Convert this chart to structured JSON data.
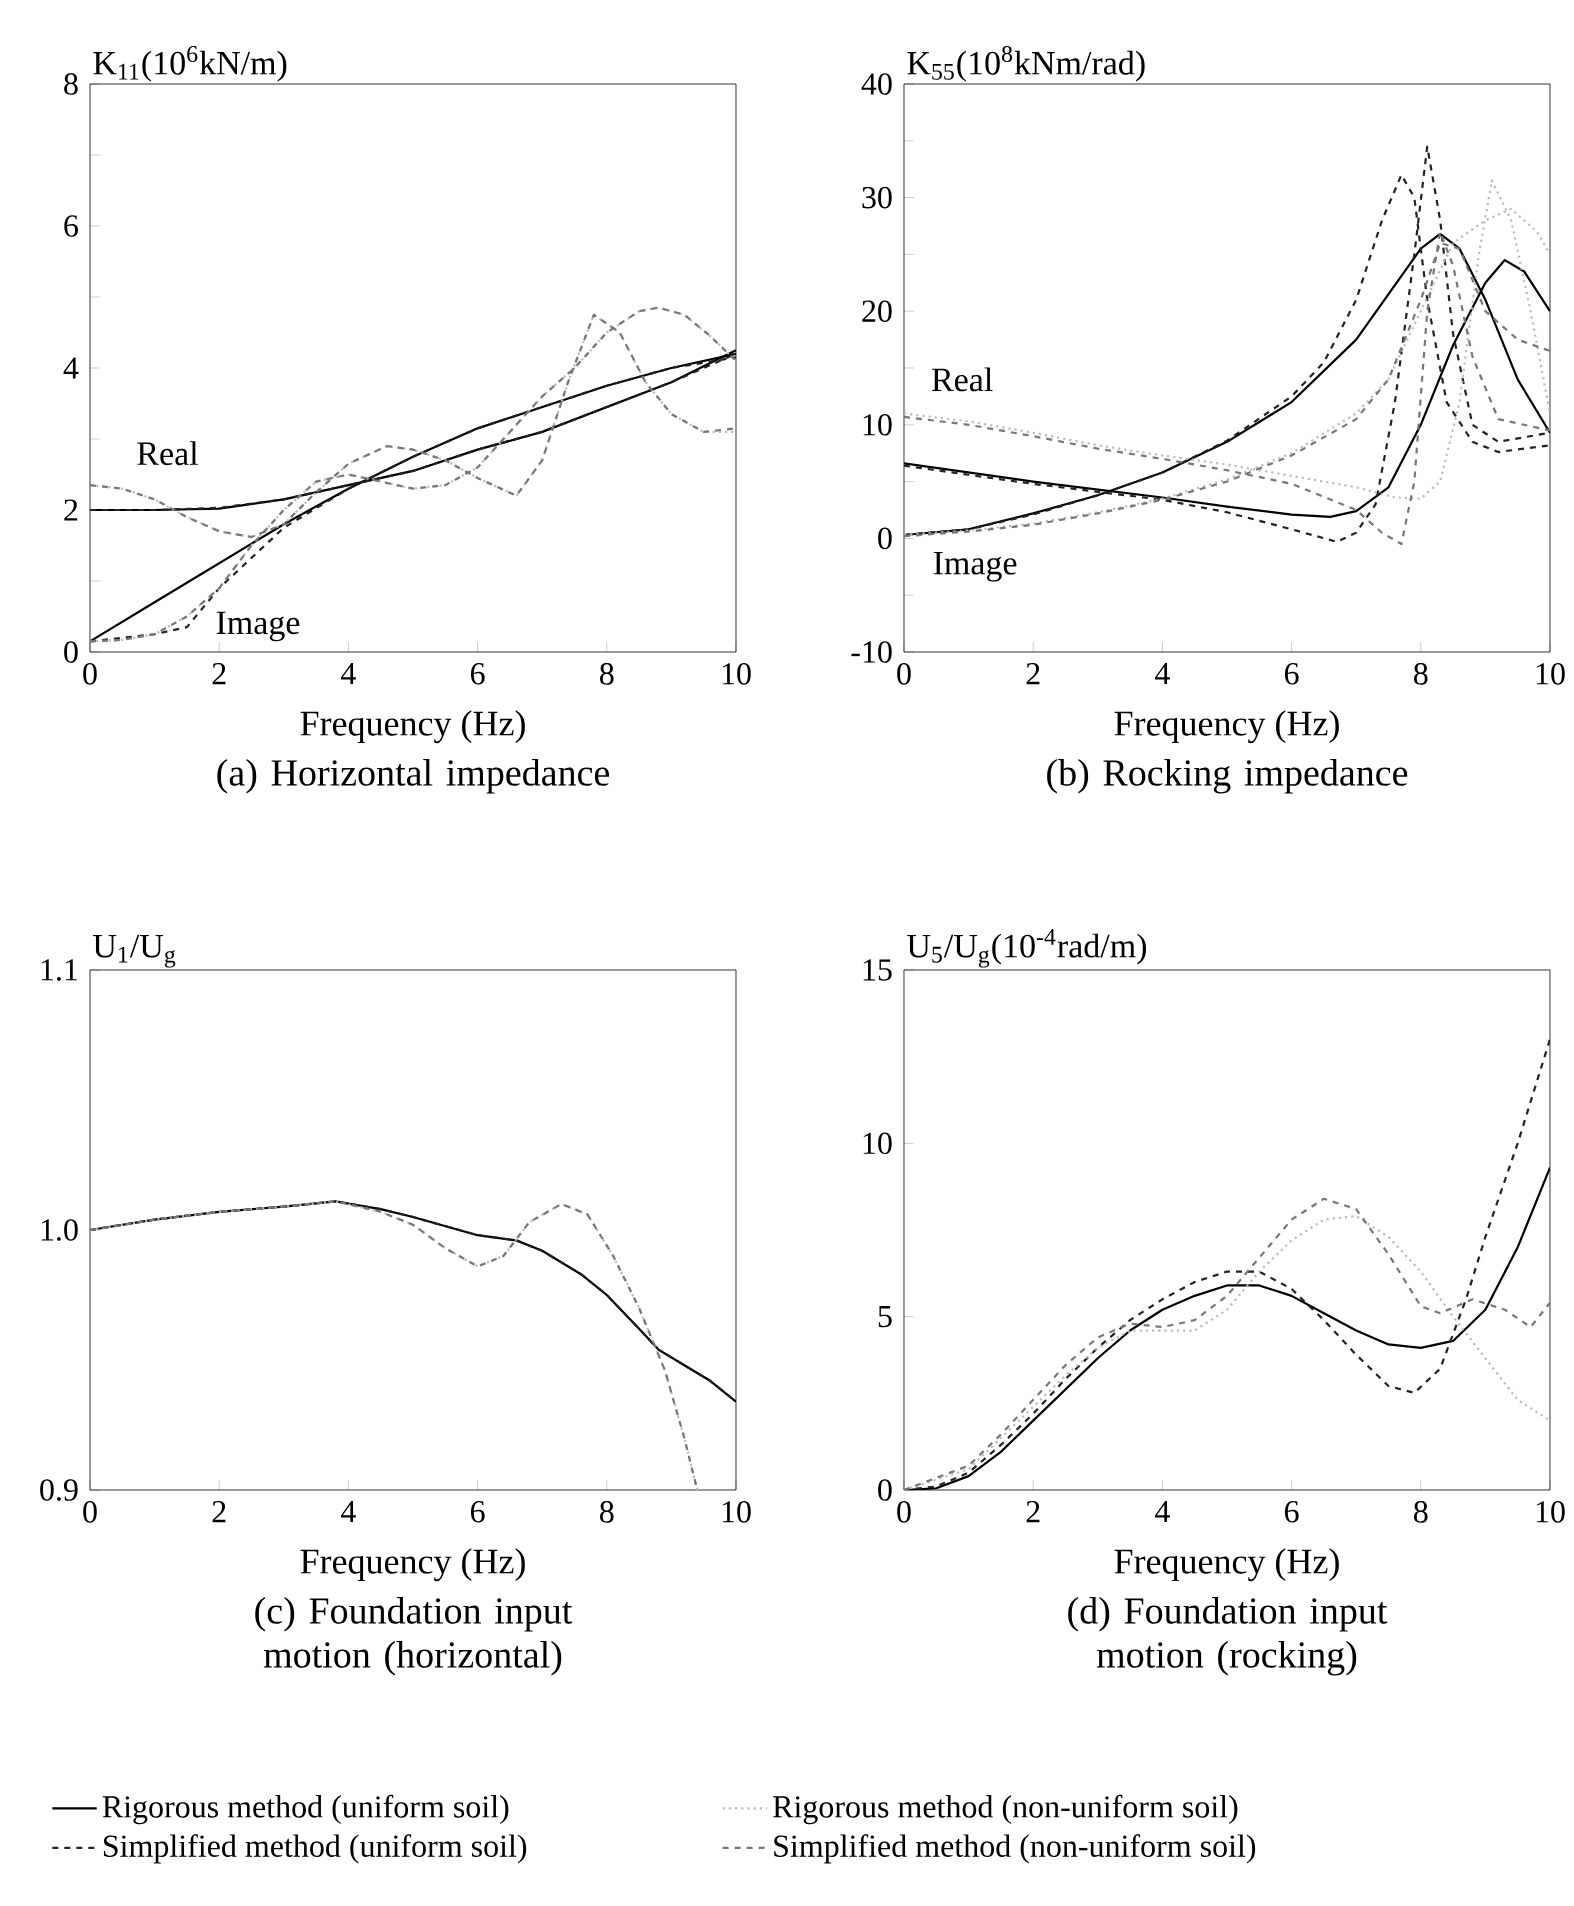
{
  "chart_data": [
    {
      "type": "line",
      "title": "(a) Horizontal impedance",
      "xlabel": "Frequency (Hz)",
      "ylabel": "K$_{11}$(10$^{6}$kN/m)",
      "xlim": [
        0,
        10
      ],
      "ylim": [
        0,
        8
      ],
      "xticks": [
        0,
        2,
        4,
        6,
        8,
        10
      ],
      "yticks": [
        0,
        {
          "value": 1,
          "label": null
        },
        2,
        {
          "value": 3,
          "label": null
        },
        4,
        {
          "value": 5,
          "label": null
        },
        6,
        {
          "value": 7,
          "label": null
        },
        8
      ],
      "annotations": [
        "Real",
        "Image"
      ],
      "series": [
        {
          "color": "#000000",
          "line_style": "solid",
          "x": [
            0,
            1,
            2,
            3,
            4,
            5,
            6,
            7,
            8,
            9,
            10
          ],
          "values": [
            2.0,
            2.0,
            2.02,
            2.15,
            2.35,
            2.55,
            2.85,
            3.1,
            3.45,
            3.8,
            4.25
          ]
        },
        {
          "color": "#000000",
          "line_style": "solid",
          "x": [
            0,
            1,
            2,
            3,
            4,
            5,
            6,
            7,
            8,
            9,
            10
          ],
          "values": [
            0.15,
            0.7,
            1.25,
            1.8,
            2.3,
            2.75,
            3.15,
            3.45,
            3.75,
            4.0,
            4.2
          ]
        },
        {
          "color": "#222222",
          "line_style": "dashed",
          "x": [
            0,
            1,
            2,
            3,
            4,
            5,
            6,
            7,
            8,
            9,
            10
          ],
          "values": [
            2.0,
            2.0,
            2.03,
            2.15,
            2.35,
            2.55,
            2.85,
            3.1,
            3.45,
            3.8,
            4.2
          ]
        },
        {
          "color": "#222222",
          "line_style": "dashed",
          "x": [
            0,
            1,
            1.5,
            2,
            3,
            4,
            5,
            6,
            7,
            8,
            9,
            10
          ],
          "values": [
            0.15,
            0.25,
            0.35,
            0.9,
            1.75,
            2.3,
            2.75,
            3.15,
            3.45,
            3.75,
            4.0,
            4.15
          ]
        },
        {
          "color": "#bbbbbb",
          "line_style": "dotted",
          "x": [
            0,
            0.5,
            1,
            1.5,
            2,
            2.5,
            3,
            3.5,
            4,
            4.6,
            5,
            5.5,
            6,
            6.6,
            7,
            7.4,
            7.8,
            8.2,
            8.6,
            9,
            9.5,
            10
          ],
          "values": [
            2.35,
            2.3,
            2.15,
            1.9,
            1.7,
            1.62,
            1.8,
            2.25,
            2.65,
            2.9,
            2.85,
            2.7,
            2.45,
            2.2,
            2.7,
            3.8,
            4.75,
            4.5,
            3.8,
            3.35,
            3.1,
            3.1
          ]
        },
        {
          "color": "#bbbbbb",
          "line_style": "dotted",
          "x": [
            0,
            0.5,
            1,
            1.5,
            2,
            2.5,
            3,
            3.5,
            4,
            4.5,
            5,
            5.5,
            6,
            6.5,
            7,
            7.5,
            8,
            8.5,
            8.8,
            9.2,
            9.6,
            10
          ],
          "values": [
            0.15,
            0.17,
            0.25,
            0.5,
            0.9,
            1.5,
            2.0,
            2.4,
            2.5,
            2.4,
            2.3,
            2.35,
            2.6,
            3.1,
            3.6,
            4.0,
            4.5,
            4.8,
            4.85,
            4.75,
            4.45,
            4.1
          ]
        },
        {
          "color": "#777777",
          "line_style": "dashed",
          "x": [
            0,
            0.5,
            1,
            1.5,
            2,
            2.5,
            3,
            3.5,
            4,
            4.6,
            5,
            5.5,
            6,
            6.6,
            7,
            7.4,
            7.8,
            8.2,
            8.6,
            9,
            9.5,
            10
          ],
          "values": [
            2.35,
            2.3,
            2.15,
            1.9,
            1.7,
            1.62,
            1.8,
            2.25,
            2.65,
            2.9,
            2.85,
            2.7,
            2.45,
            2.2,
            2.7,
            3.8,
            4.75,
            4.5,
            3.8,
            3.35,
            3.1,
            3.15
          ]
        },
        {
          "color": "#777777",
          "line_style": "dashed",
          "x": [
            0,
            0.5,
            1,
            1.5,
            2,
            2.5,
            3,
            3.5,
            4,
            4.5,
            5,
            5.5,
            6,
            6.5,
            7,
            7.5,
            8,
            8.5,
            8.8,
            9.2,
            9.6,
            10
          ],
          "values": [
            0.15,
            0.17,
            0.25,
            0.5,
            0.9,
            1.5,
            2.0,
            2.4,
            2.5,
            2.4,
            2.3,
            2.35,
            2.6,
            3.1,
            3.6,
            4.0,
            4.5,
            4.8,
            4.85,
            4.75,
            4.45,
            4.1
          ]
        }
      ]
    },
    {
      "type": "line",
      "title": "(b) Rocking impedance",
      "xlabel": "Frequency (Hz)",
      "ylabel": "K$_{55}$(10$^{8}$kNm/rad)",
      "xlim": [
        0,
        10
      ],
      "ylim": [
        -10,
        40
      ],
      "xticks": [
        0,
        2,
        4,
        6,
        8,
        10
      ],
      "yticks": [
        -10,
        {
          "value": -5,
          "label": null
        },
        0,
        {
          "value": 5,
          "label": null
        },
        10,
        {
          "value": 15,
          "label": null
        },
        20,
        {
          "value": 25,
          "label": null
        },
        30,
        {
          "value": 35,
          "label": null
        },
        40
      ],
      "annotations": [
        "Real",
        "Image"
      ],
      "series": [
        {
          "color": "#000000",
          "line_style": "solid",
          "x": [
            0,
            1,
            2,
            3,
            4,
            5,
            6,
            6.6,
            7,
            7.5,
            8,
            8.5,
            9,
            9.3,
            9.6,
            10
          ],
          "values": [
            6.6,
            5.8,
            5.0,
            4.3,
            3.6,
            2.8,
            2.1,
            1.9,
            2.4,
            4.5,
            10,
            17,
            22.5,
            24.5,
            23.5,
            20
          ]
        },
        {
          "color": "#000000",
          "line_style": "solid",
          "x": [
            0,
            1,
            2,
            3,
            4,
            5,
            6,
            7,
            7.5,
            8,
            8.3,
            8.6,
            9,
            9.5,
            10
          ],
          "values": [
            0.3,
            0.8,
            2.2,
            3.8,
            5.8,
            8.5,
            12,
            17.5,
            21.5,
            25.5,
            26.8,
            25.5,
            21,
            14,
            9.3
          ]
        },
        {
          "color": "#222222",
          "line_style": "dashed",
          "x": [
            0,
            1,
            2,
            3,
            4,
            5,
            6,
            6.7,
            7,
            7.3,
            7.6,
            7.9,
            8.1,
            8.3,
            8.5,
            8.8,
            9.2,
            10
          ],
          "values": [
            6.4,
            5.6,
            4.8,
            4.1,
            3.4,
            2.3,
            0.8,
            -0.3,
            0.5,
            3,
            12,
            25,
            34.5,
            28,
            18,
            10,
            8.5,
            9.3
          ]
        },
        {
          "color": "#222222",
          "line_style": "dashed",
          "x": [
            0,
            1,
            2,
            3,
            4,
            5,
            6,
            6.5,
            7,
            7.4,
            7.7,
            7.9,
            8.1,
            8.4,
            8.8,
            9.2,
            10
          ],
          "values": [
            0.3,
            0.8,
            2.1,
            3.8,
            5.8,
            8.6,
            12.5,
            15.5,
            21,
            28,
            32,
            30,
            21,
            12,
            8.5,
            7.6,
            8.2
          ]
        },
        {
          "color": "#bbbbbb",
          "line_style": "dotted",
          "x": [
            0,
            1,
            2,
            3,
            4,
            5,
            6,
            7,
            7.6,
            8,
            8.3,
            8.6,
            8.9,
            9.1,
            9.4,
            9.7,
            10
          ],
          "values": [
            11,
            10.3,
            9.3,
            8.2,
            7.3,
            6.5,
            5.5,
            4.5,
            3.6,
            3.5,
            5,
            12,
            25,
            31.5,
            28,
            20,
            11
          ]
        },
        {
          "color": "#bbbbbb",
          "line_style": "dotted",
          "x": [
            0,
            1,
            2,
            3,
            4,
            5,
            6,
            7,
            7.5,
            8,
            8.5,
            9,
            9.4,
            9.8,
            10
          ],
          "values": [
            0.3,
            0.7,
            1.3,
            2.3,
            3.5,
            5.2,
            7.5,
            11,
            14,
            20,
            26,
            28,
            29,
            27,
            25
          ]
        },
        {
          "color": "#777777",
          "line_style": "dashed",
          "x": [
            0,
            1,
            2,
            3,
            4,
            5,
            6,
            7,
            7.4,
            7.7,
            7.9,
            8.1,
            8.3,
            8.5,
            8.8,
            9.2,
            10
          ],
          "values": [
            10.7,
            10,
            9,
            7.9,
            7,
            6,
            4.8,
            2.5,
            0.5,
            -0.5,
            5,
            20,
            27,
            24,
            16,
            10.5,
            9.5
          ]
        },
        {
          "color": "#777777",
          "line_style": "dashed",
          "x": [
            0,
            1,
            2,
            3,
            4,
            5,
            6,
            7,
            7.5,
            8,
            8.3,
            8.6,
            9,
            9.5,
            10
          ],
          "values": [
            0.2,
            0.6,
            1.2,
            2.2,
            3.4,
            5,
            7.3,
            10.5,
            14,
            21,
            26,
            25.5,
            20,
            17.5,
            16.5
          ]
        }
      ]
    },
    {
      "type": "line",
      "title": "(c) Foundation input motion (horizontal)",
      "xlabel": "Frequency (Hz)",
      "ylabel": "U$_{1}$/U$_{g}$",
      "xlim": [
        0,
        10
      ],
      "ylim": [
        0.9,
        1.1
      ],
      "xticks": [
        0,
        2,
        4,
        6,
        8,
        10
      ],
      "yticks": [
        0.9,
        {
          "value": 1.0,
          "label": "1.0"
        },
        1.1
      ],
      "series": [
        {
          "color": "#000000",
          "line_style": "solid",
          "x": [
            0,
            1,
            2,
            3,
            3.8,
            4.5,
            5,
            6,
            6.6,
            7,
            7.6,
            8,
            8.5,
            8.8,
            9.2,
            9.6,
            10
          ],
          "values": [
            1.0,
            1.004,
            1.007,
            1.009,
            1.011,
            1.008,
            1.005,
            0.998,
            0.996,
            0.992,
            0.983,
            0.975,
            0.962,
            0.954,
            0.948,
            0.942,
            0.934
          ]
        },
        {
          "color": "#222222",
          "line_style": "dashed",
          "x": [
            0,
            1,
            2,
            3,
            3.8,
            4.5,
            5,
            6,
            6.6,
            7,
            7.6,
            8,
            8.5,
            8.8,
            9.2,
            9.6,
            10
          ],
          "values": [
            1.0,
            1.004,
            1.007,
            1.009,
            1.011,
            1.008,
            1.005,
            0.998,
            0.996,
            0.992,
            0.983,
            0.975,
            0.962,
            0.954,
            0.948,
            0.942,
            0.934
          ]
        },
        {
          "color": "#bbbbbb",
          "line_style": "dotted",
          "x": [
            0,
            1,
            2,
            3,
            3.8,
            4.5,
            5,
            5.5,
            6,
            6.4,
            6.8,
            7.3,
            7.7,
            8.1,
            8.5,
            8.9,
            9.2,
            9.4
          ],
          "values": [
            1.0,
            1.004,
            1.007,
            1.009,
            1.011,
            1.007,
            1.002,
            0.993,
            0.986,
            0.99,
            1.003,
            1.01,
            1.006,
            0.99,
            0.97,
            0.946,
            0.92,
            0.9
          ]
        },
        {
          "color": "#777777",
          "line_style": "dashed",
          "x": [
            0,
            1,
            2,
            3,
            3.8,
            4.5,
            5,
            5.5,
            6,
            6.4,
            6.8,
            7.3,
            7.7,
            8.1,
            8.5,
            8.9,
            9.2,
            9.4
          ],
          "values": [
            1.0,
            1.004,
            1.007,
            1.009,
            1.011,
            1.007,
            1.002,
            0.993,
            0.986,
            0.99,
            1.003,
            1.01,
            1.006,
            0.99,
            0.97,
            0.946,
            0.92,
            0.9
          ]
        }
      ]
    },
    {
      "type": "line",
      "title": "(d) Foundation input motion (rocking)",
      "xlabel": "Frequency (Hz)",
      "ylabel": "U$_{5}$/U$_{g}$(10$^{-4}$rad/m)",
      "xlim": [
        0,
        10
      ],
      "ylim": [
        0,
        15
      ],
      "xticks": [
        0,
        2,
        4,
        6,
        8,
        10
      ],
      "yticks": [
        0,
        5,
        10,
        15
      ],
      "legend": "bottom",
      "series": [
        {
          "name": "Rigorous method (uniform soil)",
          "color": "#000000",
          "line_style": "solid",
          "x": [
            0,
            0.5,
            1,
            1.5,
            2,
            2.5,
            3,
            3.5,
            4,
            4.5,
            5,
            5.5,
            6,
            6.5,
            7,
            7.5,
            8,
            8.5,
            9,
            9.5,
            10
          ],
          "values": [
            0,
            0.05,
            0.4,
            1.1,
            2.0,
            2.9,
            3.8,
            4.6,
            5.2,
            5.6,
            5.9,
            5.9,
            5.6,
            5.1,
            4.6,
            4.2,
            4.1,
            4.3,
            5.2,
            7,
            9.3
          ]
        },
        {
          "name": "Simplified method (uniform soil)",
          "color": "#222222",
          "line_style": "dashed",
          "x": [
            0,
            0.5,
            1,
            1.5,
            2,
            2.5,
            3,
            3.5,
            4,
            4.5,
            5,
            5.5,
            6,
            6.5,
            7,
            7.5,
            7.9,
            8.3,
            8.7,
            9,
            9.5,
            10
          ],
          "values": [
            0,
            0.1,
            0.5,
            1.3,
            2.2,
            3.2,
            4.1,
            4.9,
            5.5,
            6.0,
            6.3,
            6.3,
            5.8,
            4.9,
            3.9,
            3.0,
            2.8,
            3.5,
            5.5,
            7.3,
            10,
            13
          ]
        },
        {
          "name": "Rigorous method (non-uniform soil)",
          "color": "#bbbbbb",
          "line_style": "dotted",
          "x": [
            0,
            1,
            1.5,
            2,
            2.5,
            3,
            3.5,
            4,
            4.5,
            5,
            5.5,
            6,
            6.5,
            7,
            7.5,
            8,
            8.5,
            9,
            9.5,
            10
          ],
          "values": [
            0,
            0.6,
            1.5,
            2.4,
            3.3,
            4.1,
            4.6,
            4.6,
            4.6,
            5.2,
            6.3,
            7.2,
            7.8,
            7.9,
            7.3,
            6.3,
            5.0,
            3.8,
            2.6,
            2.0
          ]
        },
        {
          "name": "Simplified method (non-uniform soil)",
          "color": "#777777",
          "line_style": "dashed",
          "x": [
            0,
            1,
            1.5,
            2,
            2.5,
            3,
            3.5,
            4,
            4.5,
            5,
            5.5,
            6,
            6.5,
            7,
            7.5,
            8,
            8.3,
            8.8,
            9.3,
            9.7,
            10
          ],
          "values": [
            0,
            0.7,
            1.6,
            2.6,
            3.6,
            4.4,
            4.8,
            4.7,
            4.9,
            5.6,
            6.7,
            7.8,
            8.4,
            8.1,
            6.8,
            5.3,
            5.1,
            5.5,
            5.2,
            4.7,
            5.4
          ]
        }
      ]
    }
  ]
}
